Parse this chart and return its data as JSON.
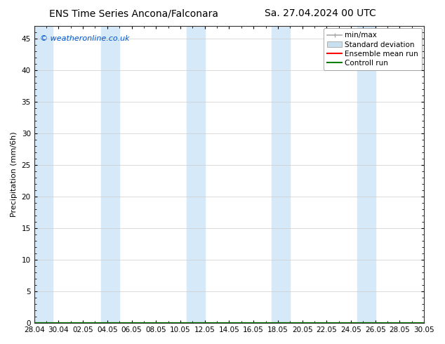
{
  "title_left": "ENS Time Series Ancona/Falconara",
  "title_right": "Sa. 27.04.2024 00 UTC",
  "ylabel": "Precipitation (mm/6h)",
  "watermark": "© weatheronline.co.uk",
  "background_color": "#ffffff",
  "plot_bg_color": "#ffffff",
  "ylim": [
    0,
    47
  ],
  "yticks": [
    0,
    5,
    10,
    15,
    20,
    25,
    30,
    35,
    40,
    45
  ],
  "xlim": [
    0,
    32
  ],
  "xtick_positions": [
    0,
    2,
    4,
    6,
    8,
    10,
    12,
    14,
    16,
    18,
    20,
    22,
    24,
    26,
    28,
    30,
    32
  ],
  "xtick_labels": [
    "28.04",
    "30.04",
    "02.05",
    "04.05",
    "06.05",
    "08.05",
    "10.05",
    "12.05",
    "14.05",
    "16.05",
    "18.05",
    "20.05",
    "22.05",
    "24.05",
    "26.05",
    "28.05",
    "30.05"
  ],
  "shade_bands": [
    [
      0.0,
      1.5
    ],
    [
      5.5,
      7.0
    ],
    [
      12.5,
      14.0
    ],
    [
      19.5,
      21.0
    ],
    [
      26.5,
      28.0
    ]
  ],
  "shade_color": "#d6e9f8",
  "legend_entries": [
    {
      "label": "min/max",
      "color": "#aaaaaa",
      "lw": 1.2
    },
    {
      "label": "Standard deviation",
      "color": "#c8dff0",
      "lw": 6
    },
    {
      "label": "Ensemble mean run",
      "color": "#ff0000",
      "lw": 1.5
    },
    {
      "label": "Controll run",
      "color": "#008000",
      "lw": 1.5
    }
  ],
  "title_fontsize": 10,
  "axis_label_fontsize": 8,
  "tick_fontsize": 7.5,
  "watermark_color": "#0055cc",
  "watermark_fontsize": 8,
  "legend_fontsize": 7.5
}
